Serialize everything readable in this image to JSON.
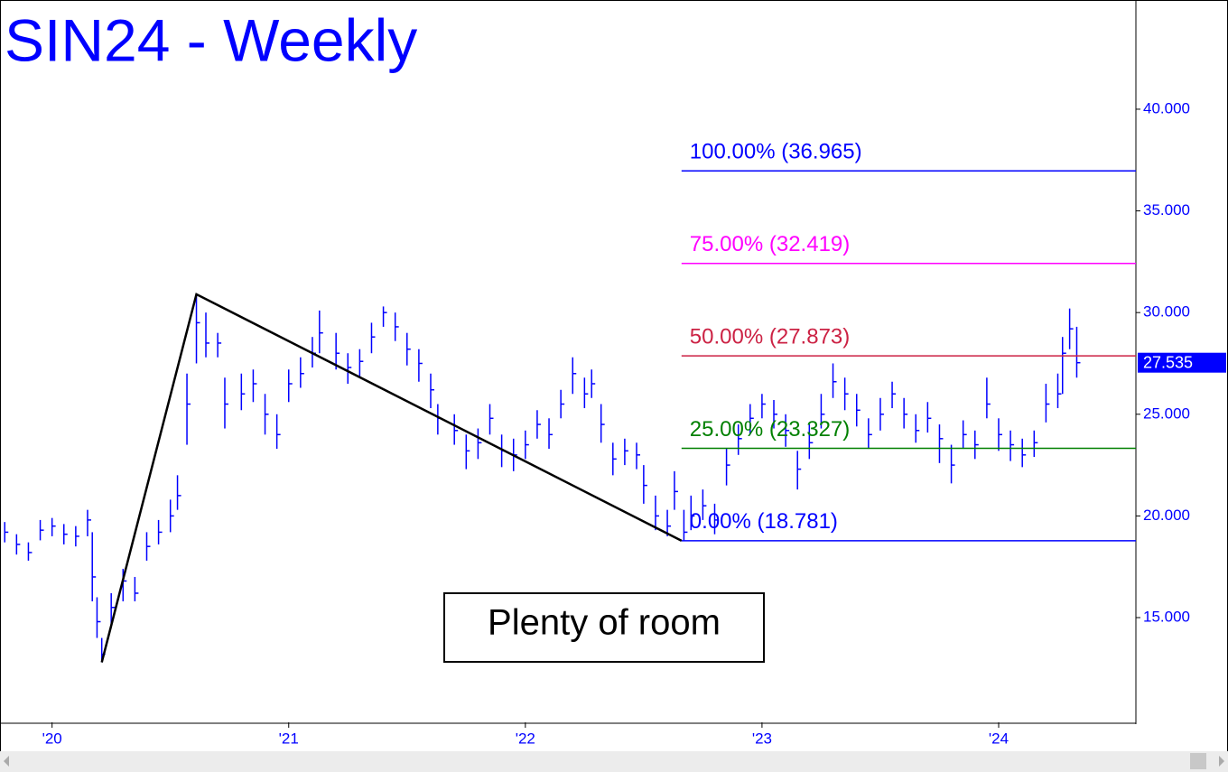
{
  "chart_data": {
    "type": "ohlc",
    "title": "SIN24 - Weekly",
    "color": "#0000ff",
    "xlim": [
      2019.78,
      2024.58
    ],
    "ylim": [
      9.85,
      45.37
    ],
    "xticks": [
      {
        "value": 2020,
        "label": "'20"
      },
      {
        "value": 2021,
        "label": "'21"
      },
      {
        "value": 2022,
        "label": "'22"
      },
      {
        "value": 2023,
        "label": "'23"
      },
      {
        "value": 2024,
        "label": "'24"
      }
    ],
    "yticks": [
      {
        "value": 15,
        "label": "15.000"
      },
      {
        "value": 20,
        "label": "20.000"
      },
      {
        "value": 25,
        "label": "25.000"
      },
      {
        "value": 30,
        "label": "30.000"
      },
      {
        "value": 35,
        "label": "35.000"
      },
      {
        "value": 40,
        "label": "40.000"
      }
    ],
    "x": [
      2019.8,
      2019.85,
      2019.9,
      2019.95,
      2020.0,
      2020.05,
      2020.1,
      2020.15,
      2020.17,
      2020.19,
      2020.21,
      2020.25,
      2020.3,
      2020.35,
      2020.4,
      2020.45,
      2020.5,
      2020.53,
      2020.57,
      2020.61,
      2020.65,
      2020.7,
      2020.73,
      2020.8,
      2020.85,
      2020.9,
      2020.95,
      2021.0,
      2021.05,
      2021.1,
      2021.13,
      2021.2,
      2021.25,
      2021.3,
      2021.35,
      2021.4,
      2021.45,
      2021.5,
      2021.55,
      2021.6,
      2021.63,
      2021.7,
      2021.75,
      2021.8,
      2021.85,
      2021.9,
      2021.95,
      2022.0,
      2022.05,
      2022.1,
      2022.15,
      2022.2,
      2022.25,
      2022.28,
      2022.32,
      2022.37,
      2022.42,
      2022.47,
      2022.5,
      2022.55,
      2022.6,
      2022.63,
      2022.67,
      2022.7,
      2022.75,
      2022.8,
      2022.85,
      2022.9,
      2022.95,
      2023.0,
      2023.05,
      2023.1,
      2023.15,
      2023.2,
      2023.25,
      2023.3,
      2023.35,
      2023.4,
      2023.45,
      2023.5,
      2023.55,
      2023.6,
      2023.65,
      2023.7,
      2023.75,
      2023.8,
      2023.85,
      2023.9,
      2023.95,
      2024.0,
      2024.05,
      2024.1,
      2024.15,
      2024.2,
      2024.25,
      2024.27,
      2024.3,
      2024.33
    ],
    "high": [
      19.7,
      19.1,
      18.7,
      19.8,
      19.9,
      19.6,
      19.5,
      20.3,
      19.2,
      16.0,
      14.0,
      16.2,
      17.4,
      17.0,
      19.2,
      19.8,
      20.8,
      22.0,
      27.0,
      30.9,
      30.0,
      29.0,
      26.8,
      27.0,
      27.2,
      26.0,
      25.0,
      27.2,
      27.8,
      28.8,
      30.1,
      29.0,
      28.0,
      28.2,
      29.5,
      30.3,
      30.0,
      29.0,
      28.2,
      27.0,
      25.5,
      25.0,
      24.0,
      24.3,
      25.5,
      24.0,
      23.8,
      24.2,
      25.2,
      24.8,
      26.2,
      27.8,
      26.8,
      27.2,
      25.5,
      23.6,
      23.8,
      23.6,
      22.5,
      21.0,
      20.3,
      22.2,
      20.3,
      21.0,
      21.3,
      20.6,
      23.3,
      24.5,
      25.5,
      26.0,
      25.7,
      25.0,
      23.2,
      24.5,
      26.0,
      27.5,
      26.8,
      26.0,
      24.8,
      25.8,
      26.6,
      25.8,
      25.0,
      25.6,
      24.5,
      23.5,
      24.7,
      24.2,
      26.8,
      24.8,
      24.2,
      23.8,
      24.2,
      26.5,
      27.0,
      28.8,
      30.2,
      29.3
    ],
    "low": [
      18.7,
      18.1,
      17.8,
      18.8,
      19.0,
      18.6,
      18.5,
      19.0,
      15.8,
      14.0,
      12.8,
      14.5,
      15.8,
      15.8,
      17.8,
      18.6,
      19.2,
      20.3,
      23.5,
      27.5,
      27.8,
      27.8,
      24.3,
      25.2,
      25.6,
      24.0,
      23.3,
      25.6,
      26.3,
      27.3,
      28.0,
      27.2,
      26.5,
      26.8,
      28.0,
      29.3,
      28.6,
      27.4,
      26.6,
      25.3,
      24.0,
      23.5,
      22.3,
      22.8,
      24.0,
      22.4,
      22.2,
      22.8,
      23.8,
      23.3,
      24.8,
      26.0,
      25.3,
      25.8,
      23.6,
      22.0,
      22.5,
      22.3,
      20.6,
      19.3,
      19.0,
      20.3,
      18.8,
      19.3,
      19.8,
      19.1,
      21.5,
      23.0,
      24.0,
      24.8,
      24.3,
      23.4,
      21.3,
      22.8,
      24.3,
      25.8,
      25.2,
      24.4,
      23.3,
      24.2,
      25.3,
      24.3,
      23.6,
      24.1,
      22.6,
      21.6,
      23.3,
      22.8,
      24.8,
      23.2,
      22.7,
      22.4,
      22.9,
      24.6,
      25.3,
      26.0,
      28.2,
      26.8
    ],
    "close": [
      19.2,
      18.6,
      18.2,
      19.3,
      19.5,
      19.1,
      19.0,
      19.8,
      17.0,
      14.8,
      13.2,
      15.5,
      16.8,
      16.2,
      18.5,
      19.2,
      20.0,
      21.0,
      25.5,
      29.5,
      28.5,
      28.5,
      25.5,
      26.0,
      26.5,
      25.0,
      24.0,
      26.5,
      27.0,
      28.0,
      29.0,
      28.0,
      27.3,
      27.6,
      28.8,
      30.0,
      29.3,
      28.2,
      27.5,
      26.2,
      24.8,
      24.2,
      23.2,
      23.6,
      24.8,
      23.2,
      23.0,
      23.5,
      24.5,
      24.0,
      25.5,
      27.0,
      26.0,
      26.5,
      24.5,
      22.8,
      23.2,
      23.0,
      21.5,
      20.0,
      19.5,
      21.2,
      19.2,
      20.0,
      20.5,
      19.8,
      22.5,
      23.8,
      24.8,
      25.5,
      25.0,
      24.2,
      22.3,
      23.6,
      25.0,
      26.6,
      26.0,
      25.2,
      24.0,
      25.0,
      26.0,
      25.0,
      24.2,
      24.8,
      23.8,
      22.5,
      24.0,
      23.5,
      25.5,
      24.0,
      23.5,
      23.0,
      23.6,
      25.5,
      26.0,
      28.0,
      29.2,
      27.535
    ],
    "fib_start": 2022.66,
    "fib_levels": [
      {
        "value": 36.965,
        "label": "100.00% (36.965)",
        "color": "#0000ff"
      },
      {
        "value": 32.419,
        "label": "75.00% (32.419)",
        "color": "#ff00ff"
      },
      {
        "value": 27.873,
        "label": "50.00% (27.873)",
        "color": "#cc2244"
      },
      {
        "value": 23.327,
        "label": "25.00% (23.327)",
        "color": "#008000"
      },
      {
        "value": 18.781,
        "label": "0.00% (18.781)",
        "color": "#0000ff"
      }
    ],
    "trendline": {
      "x": [
        2020.21,
        2020.61,
        2022.66
      ],
      "y": [
        12.8,
        30.9,
        18.781
      ]
    },
    "last_price": 27.535,
    "annotation": "Plenty of room"
  }
}
